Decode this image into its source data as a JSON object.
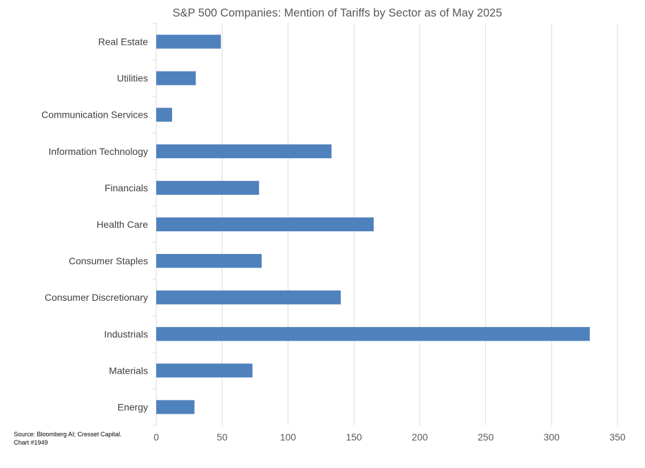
{
  "chart_data": {
    "type": "bar",
    "orientation": "horizontal",
    "title": "S&P 500 Companies: Mention of Tariffs by Sector as of May 2025",
    "categories": [
      "Real Estate",
      "Utilities",
      "Communication Services",
      "Information Technology",
      "Financials",
      "Health Care",
      "Consumer Staples",
      "Consumer Discretionary",
      "Industrials",
      "Materials",
      "Energy"
    ],
    "values": [
      49,
      30,
      12,
      133,
      78,
      165,
      80,
      140,
      329,
      73,
      29
    ],
    "xlim": [
      0,
      350
    ],
    "xticks": [
      0,
      50,
      100,
      150,
      200,
      250,
      300,
      350
    ],
    "xlabel": "",
    "ylabel": "",
    "grid": "vertical",
    "legend": "none",
    "bar_color": "#4F81BD"
  },
  "source": "Source: Bloomberg AI; Cresset Capital.",
  "chart_id": "Chart #1949"
}
